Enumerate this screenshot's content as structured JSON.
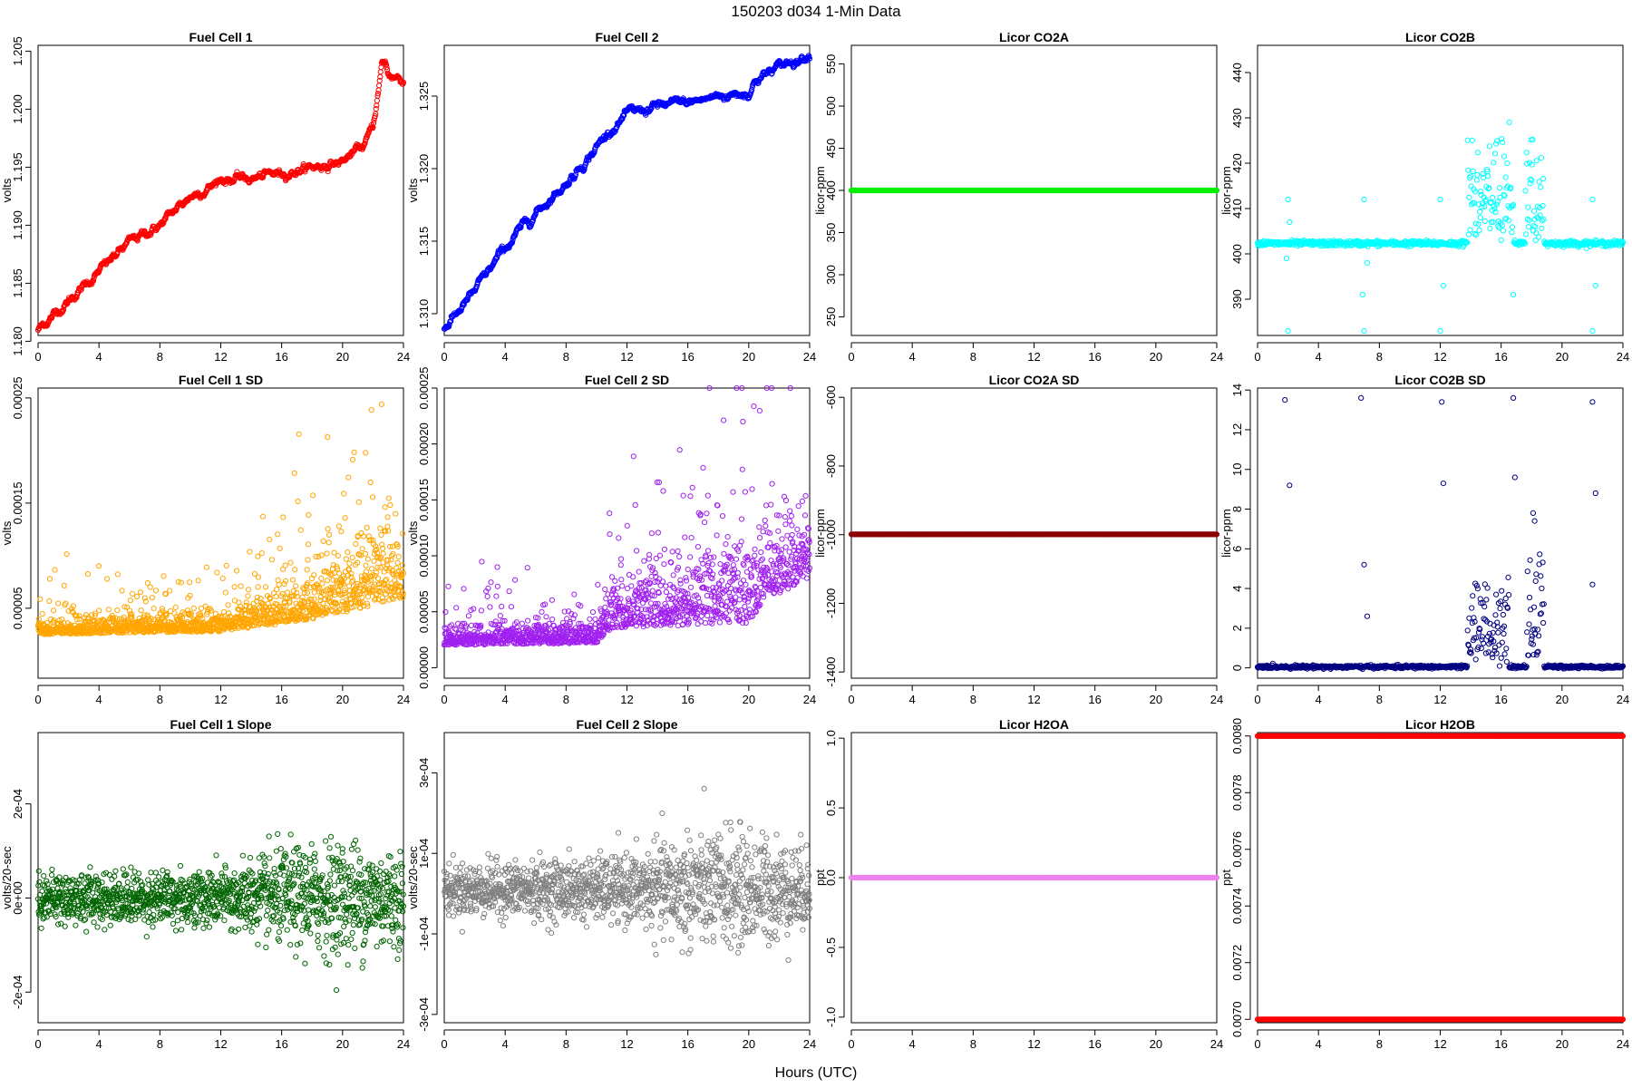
{
  "figure": {
    "title": "150203    d034    1-Min Data",
    "x_axis_label": "Hours (UTC)"
  },
  "chart_data": [
    {
      "type": "scatter",
      "title": "Fuel Cell 1",
      "ylabel": "volts",
      "xlim": [
        0,
        24
      ],
      "xticks": [
        0,
        4,
        8,
        12,
        16,
        20,
        24
      ],
      "xtick_labels": [
        "0",
        "4",
        "8",
        "12",
        "16",
        "20",
        "24"
      ],
      "ylim": [
        1.1805,
        1.2055
      ],
      "yticks": [
        1.18,
        1.185,
        1.19,
        1.195,
        1.2,
        1.205
      ],
      "ytick_labels": [
        "1.180",
        "1.185",
        "1.190",
        "1.195",
        "1.200",
        "1.205"
      ],
      "color": "#ff0000",
      "series": [
        {
          "pattern": "curve",
          "x": [
            0,
            2,
            4,
            6,
            8,
            10,
            11.5,
            12,
            14,
            16,
            18,
            20,
            21.5,
            22,
            22.4,
            22.6,
            22.8,
            23,
            23.5,
            24
          ],
          "y": [
            1.181,
            1.1835,
            1.186,
            1.1885,
            1.19,
            1.1925,
            1.1935,
            1.194,
            1.194,
            1.1945,
            1.195,
            1.1955,
            1.197,
            1.1985,
            1.202,
            1.204,
            1.204,
            1.203,
            1.2028,
            1.2025
          ],
          "noise": 0.0003
        }
      ]
    },
    {
      "type": "scatter",
      "title": "Fuel Cell 2",
      "ylabel": "volts",
      "xlim": [
        0,
        24
      ],
      "xticks": [
        0,
        4,
        8,
        12,
        16,
        20,
        24
      ],
      "xtick_labels": [
        "0",
        "4",
        "8",
        "12",
        "16",
        "20",
        "24"
      ],
      "ylim": [
        1.3085,
        1.3285
      ],
      "yticks": [
        1.31,
        1.315,
        1.32,
        1.325
      ],
      "ytick_labels": [
        "1.310",
        "1.315",
        "1.320",
        "1.325"
      ],
      "color": "#0000ff",
      "series": [
        {
          "pattern": "curve",
          "x": [
            0,
            2,
            4,
            6,
            8,
            10,
            11,
            12,
            13,
            14,
            16,
            18,
            20,
            20.5,
            22,
            24
          ],
          "y": [
            1.309,
            1.3115,
            1.3145,
            1.317,
            1.319,
            1.3215,
            1.3228,
            1.3237,
            1.324,
            1.3243,
            1.3245,
            1.325,
            1.3253,
            1.3262,
            1.327,
            1.328
          ],
          "noise": 0.00025
        }
      ]
    },
    {
      "type": "scatter",
      "title": "Licor CO2A",
      "ylabel": "licor-ppm",
      "xlim": [
        0,
        24
      ],
      "xticks": [
        0,
        4,
        8,
        12,
        16,
        20,
        24
      ],
      "xtick_labels": [
        "0",
        "4",
        "8",
        "12",
        "16",
        "20",
        "24"
      ],
      "ylim": [
        228,
        572
      ],
      "yticks": [
        250,
        300,
        350,
        400,
        450,
        500,
        550
      ],
      "ytick_labels": [
        "250",
        "300",
        "350",
        "400",
        "450",
        "500",
        "550"
      ],
      "color": "#00ee00",
      "series": [
        {
          "pattern": "constant",
          "value": 400
        }
      ]
    },
    {
      "type": "scatter",
      "title": "Licor CO2B",
      "ylabel": "licor-ppm",
      "xlim": [
        0,
        24
      ],
      "xticks": [
        0,
        4,
        8,
        12,
        16,
        20,
        24
      ],
      "xtick_labels": [
        "0",
        "4",
        "8",
        "12",
        "16",
        "20",
        "24"
      ],
      "ylim": [
        382,
        446
      ],
      "yticks": [
        390,
        400,
        410,
        420,
        430,
        440
      ],
      "ytick_labels": [
        "390",
        "400",
        "410",
        "420",
        "430",
        "440"
      ],
      "color": "#00ffff",
      "series": [
        {
          "pattern": "baseline_bursts",
          "baseline": 402.3,
          "baseline_noise": 0.3,
          "bursts": [
            {
              "start": 13.8,
              "end": 16.8,
              "amplitude": 22
            },
            {
              "start": 17.6,
              "end": 18.8,
              "amplitude": 24
            }
          ],
          "outliers_x": [
            2,
            2,
            2.1,
            7,
            7,
            7.2,
            12,
            12,
            12.2,
            22,
            22,
            22.2,
            1.9,
            6.9,
            16.8
          ],
          "outliers_y": [
            412,
            383,
            407,
            412,
            383,
            398,
            412,
            383,
            393,
            412,
            383,
            393,
            399,
            391,
            391
          ]
        }
      ]
    },
    {
      "type": "scatter",
      "title": "Fuel Cell 1 SD",
      "ylabel": "volts",
      "xlim": [
        0,
        24
      ],
      "xticks": [
        0,
        4,
        8,
        12,
        16,
        20,
        24
      ],
      "xtick_labels": [
        "0",
        "4",
        "8",
        "12",
        "16",
        "20",
        "24"
      ],
      "ylim": [
        -1.65e-05,
        0.0002594
      ],
      "yticks": [
        5e-05,
        0.00015,
        0.00025
      ],
      "ytick_labels": [
        "0.00005",
        "0.00015",
        "0.00025"
      ],
      "color": "#ffa500",
      "series": [
        {
          "pattern": "noisy",
          "base": [
            [
              0,
              2.5e-05
            ],
            [
              12,
              2.8e-05
            ],
            [
              16,
              3.5e-05
            ],
            [
              20,
              4.5e-05
            ],
            [
              24,
              6e-05
            ]
          ],
          "spread": [
            [
              0,
              3e-05
            ],
            [
              12,
              4e-05
            ],
            [
              16,
              8e-05
            ],
            [
              20,
              0.00012
            ],
            [
              24,
              0.00013
            ]
          ]
        }
      ]
    },
    {
      "type": "scatter",
      "title": "Fuel Cell 2 SD",
      "ylabel": "volts",
      "xlim": [
        0,
        24
      ],
      "xticks": [
        0,
        4,
        8,
        12,
        16,
        20,
        24
      ],
      "xtick_labels": [
        "0",
        "4",
        "8",
        "12",
        "16",
        "20",
        "24"
      ],
      "ylim": [
        -9.4e-06,
        0.00025
      ],
      "yticks": [
        0,
        5e-05,
        0.0001,
        0.00015,
        0.0002,
        0.00025
      ],
      "ytick_labels": [
        "0.00000",
        "0.00005",
        "0.00010",
        "0.00015",
        "0.00020",
        "0.00025"
      ],
      "color": "#a020f0",
      "series": [
        {
          "pattern": "noisy",
          "base": [
            [
              0,
              2e-05
            ],
            [
              10,
              2.2e-05
            ],
            [
              11,
              3.5e-05
            ],
            [
              20,
              4e-05
            ],
            [
              21,
              6e-05
            ],
            [
              24,
              8e-05
            ]
          ],
          "spread": [
            [
              0,
              4e-05
            ],
            [
              10,
              4e-05
            ],
            [
              11,
              8e-05
            ],
            [
              16,
              0.00012
            ],
            [
              20,
              0.00014
            ],
            [
              24,
              0.00012
            ]
          ]
        }
      ]
    },
    {
      "type": "scatter",
      "title": "Licor CO2A SD",
      "ylabel": "licor-ppm",
      "xlim": [
        0,
        24
      ],
      "xticks": [
        0,
        4,
        8,
        12,
        16,
        20,
        24
      ],
      "xtick_labels": [
        "0",
        "4",
        "8",
        "12",
        "16",
        "20",
        "24"
      ],
      "ylim": [
        -1418,
        -573
      ],
      "yticks": [
        -1400,
        -1200,
        -1000,
        -800,
        -600
      ],
      "ytick_labels": [
        "-1400",
        "-1200",
        "-1000",
        "-800",
        "-600"
      ],
      "color": "#8b0000",
      "series": [
        {
          "pattern": "constant",
          "value": -999
        }
      ]
    },
    {
      "type": "scatter",
      "title": "Licor CO2B SD",
      "ylabel": "licor-ppm",
      "xlim": [
        0,
        24
      ],
      "xticks": [
        0,
        4,
        8,
        12,
        16,
        20,
        24
      ],
      "xtick_labels": [
        "0",
        "4",
        "8",
        "12",
        "16",
        "20",
        "24"
      ],
      "ylim": [
        -0.52,
        14.1
      ],
      "yticks": [
        0,
        2,
        4,
        6,
        8,
        10,
        12,
        14
      ],
      "ytick_labels": [
        "0",
        "2",
        "4",
        "6",
        "8",
        "10",
        "12",
        "14"
      ],
      "color": "#000080",
      "series": [
        {
          "pattern": "baseline_bursts",
          "baseline": 0.05,
          "baseline_noise": 0.04,
          "bursts": [
            {
              "start": 13.8,
              "end": 16.5,
              "amplitude": 4
            },
            {
              "start": 17.7,
              "end": 18.8,
              "amplitude": 5
            }
          ],
          "outliers_x": [
            1.8,
            2.1,
            6.8,
            7.0,
            7.2,
            12.1,
            12.2,
            16.8,
            16.9,
            22,
            22.2,
            22.0,
            18.1,
            18.2
          ],
          "outliers_y": [
            13.5,
            9.2,
            13.6,
            5.2,
            2.6,
            13.4,
            9.3,
            13.6,
            9.6,
            13.4,
            8.8,
            4.2,
            7.8,
            7.4
          ]
        }
      ]
    },
    {
      "type": "scatter",
      "title": "Fuel Cell 1 Slope",
      "ylabel": "volts/20-sec",
      "xlim": [
        0,
        24
      ],
      "xticks": [
        0,
        4,
        8,
        12,
        16,
        20,
        24
      ],
      "xtick_labels": [
        "0",
        "4",
        "8",
        "12",
        "16",
        "20",
        "24"
      ],
      "ylim": [
        -0.000265,
        0.0003515
      ],
      "yticks": [
        -0.0002,
        0,
        0.0002
      ],
      "ytick_labels": [
        "-2e-04",
        "0e+00",
        "2e-04"
      ],
      "color": "#006400",
      "series": [
        {
          "pattern": "noisy_centered",
          "center": 0,
          "spread": [
            [
              0,
              5e-05
            ],
            [
              12,
              6e-05
            ],
            [
              16,
              0.0001
            ],
            [
              20,
              0.00012
            ],
            [
              24,
              0.0001
            ]
          ]
        }
      ]
    },
    {
      "type": "scatter",
      "title": "Fuel Cell 2 Slope",
      "ylabel": "volts/20-sec",
      "xlim": [
        0,
        24
      ],
      "xticks": [
        0,
        4,
        8,
        12,
        16,
        20,
        24
      ],
      "xtick_labels": [
        "0",
        "4",
        "8",
        "12",
        "16",
        "20",
        "24"
      ],
      "ylim": [
        -0.0003206,
        0.0004
      ],
      "yticks": [
        -0.0003,
        -0.0001,
        0.0001,
        0.0003
      ],
      "ytick_labels": [
        "-3e-04",
        "-1e-04",
        "1e-04",
        "3e-04"
      ],
      "color": "#808080",
      "series": [
        {
          "pattern": "noisy_centered",
          "center": 1e-05,
          "spread": [
            [
              0,
              6e-05
            ],
            [
              12,
              8e-05
            ],
            [
              16,
              0.00014
            ],
            [
              20,
              0.00014
            ],
            [
              24,
              0.0001
            ]
          ]
        }
      ]
    },
    {
      "type": "scatter",
      "title": "Licor H2OA",
      "ylabel": "ppt",
      "xlim": [
        0,
        24
      ],
      "xticks": [
        0,
        4,
        8,
        12,
        16,
        20,
        24
      ],
      "xtick_labels": [
        "0",
        "4",
        "8",
        "12",
        "16",
        "20",
        "24"
      ],
      "ylim": [
        -1.04,
        1.04
      ],
      "yticks": [
        -1,
        -0.5,
        0,
        0.5,
        1
      ],
      "ytick_labels": [
        "-1.0",
        "-0.5",
        "0.0",
        "0.5",
        "1.0"
      ],
      "color": "#ee82ee",
      "series": [
        {
          "pattern": "constant",
          "value": 0
        }
      ]
    },
    {
      "type": "scatter",
      "title": "Licor H2OB",
      "ylabel": "ppt",
      "xlim": [
        0,
        24
      ],
      "xticks": [
        0,
        4,
        8,
        12,
        16,
        20,
        24
      ],
      "xtick_labels": [
        "0",
        "4",
        "8",
        "12",
        "16",
        "20",
        "24"
      ],
      "ylim": [
        0.006988,
        0.008012
      ],
      "yticks": [
        0.007,
        0.0072,
        0.0074,
        0.0076,
        0.0078,
        0.008
      ],
      "ytick_labels": [
        "0.0070",
        "0.0072",
        "0.0074",
        "0.0076",
        "0.0078",
        "0.0080"
      ],
      "color": "#ff0000",
      "series": [
        {
          "pattern": "constant",
          "value": 0.008
        },
        {
          "pattern": "constant",
          "value": 0.007
        }
      ]
    }
  ]
}
